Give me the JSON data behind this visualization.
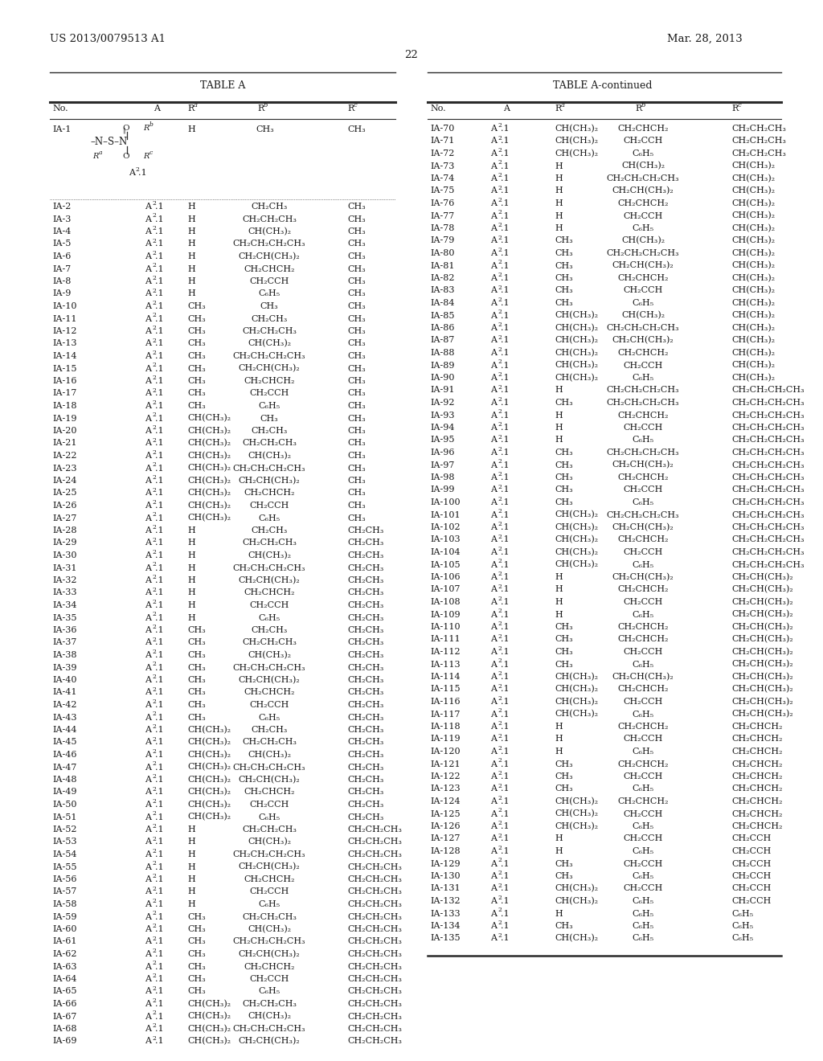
{
  "header_left": "US 2013/0079513 A1",
  "header_right": "Mar. 28, 2013",
  "page_number": "22",
  "left_table": [
    [
      "IA-1",
      "struct",
      "H",
      "CH₃",
      "CH₃"
    ],
    [
      "IA-2",
      "A².1",
      "H",
      "CH₂CH₃",
      "CH₃"
    ],
    [
      "IA-3",
      "A².1",
      "H",
      "CH₂CH₂CH₃",
      "CH₃"
    ],
    [
      "IA-4",
      "A².1",
      "H",
      "CH(CH₃)₂",
      "CH₃"
    ],
    [
      "IA-5",
      "A².1",
      "H",
      "CH₂CH₂CH₂CH₃",
      "CH₃"
    ],
    [
      "IA-6",
      "A².1",
      "H",
      "CH₂CH(CH₃)₂",
      "CH₃"
    ],
    [
      "IA-7",
      "A².1",
      "H",
      "CH₂CHCH₂",
      "CH₃"
    ],
    [
      "IA-8",
      "A².1",
      "H",
      "CH₂CCH",
      "CH₃"
    ],
    [
      "IA-9",
      "A².1",
      "H",
      "C₆H₅",
      "CH₃"
    ],
    [
      "IA-10",
      "A².1",
      "CH₃",
      "CH₃",
      "CH₃"
    ],
    [
      "IA-11",
      "A².1",
      "CH₃",
      "CH₂CH₃",
      "CH₃"
    ],
    [
      "IA-12",
      "A².1",
      "CH₃",
      "CH₂CH₂CH₃",
      "CH₃"
    ],
    [
      "IA-13",
      "A².1",
      "CH₃",
      "CH(CH₃)₂",
      "CH₃"
    ],
    [
      "IA-14",
      "A².1",
      "CH₃",
      "CH₂CH₂CH₂CH₃",
      "CH₃"
    ],
    [
      "IA-15",
      "A².1",
      "CH₃",
      "CH₂CH(CH₃)₂",
      "CH₃"
    ],
    [
      "IA-16",
      "A².1",
      "CH₃",
      "CH₂CHCH₂",
      "CH₃"
    ],
    [
      "IA-17",
      "A².1",
      "CH₃",
      "CH₂CCH",
      "CH₃"
    ],
    [
      "IA-18",
      "A².1",
      "CH₃",
      "C₆H₅",
      "CH₃"
    ],
    [
      "IA-19",
      "A².1",
      "CH(CH₃)₂",
      "CH₃",
      "CH₃"
    ],
    [
      "IA-20",
      "A².1",
      "CH(CH₃)₂",
      "CH₂CH₃",
      "CH₃"
    ],
    [
      "IA-21",
      "A².1",
      "CH(CH₃)₂",
      "CH₂CH₂CH₃",
      "CH₃"
    ],
    [
      "IA-22",
      "A².1",
      "CH(CH₃)₂",
      "CH(CH₃)₂",
      "CH₃"
    ],
    [
      "IA-23",
      "A².1",
      "CH(CH₃)₂",
      "CH₂CH₂CH₂CH₃",
      "CH₃"
    ],
    [
      "IA-24",
      "A².1",
      "CH(CH₃)₂",
      "CH₂CH(CH₃)₂",
      "CH₃"
    ],
    [
      "IA-25",
      "A².1",
      "CH(CH₃)₂",
      "CH₂CHCH₂",
      "CH₃"
    ],
    [
      "IA-26",
      "A².1",
      "CH(CH₃)₂",
      "CH₂CCH",
      "CH₃"
    ],
    [
      "IA-27",
      "A².1",
      "CH(CH₃)₂",
      "C₆H₅",
      "CH₃"
    ],
    [
      "IA-28",
      "A².1",
      "H",
      "CH₂CH₃",
      "CH₂CH₃"
    ],
    [
      "IA-29",
      "A².1",
      "H",
      "CH₂CH₂CH₃",
      "CH₂CH₃"
    ],
    [
      "IA-30",
      "A².1",
      "H",
      "CH(CH₃)₂",
      "CH₂CH₃"
    ],
    [
      "IA-31",
      "A².1",
      "H",
      "CH₂CH₂CH₂CH₃",
      "CH₂CH₃"
    ],
    [
      "IA-32",
      "A².1",
      "H",
      "CH₂CH(CH₃)₂",
      "CH₂CH₃"
    ],
    [
      "IA-33",
      "A².1",
      "H",
      "CH₂CHCH₂",
      "CH₂CH₃"
    ],
    [
      "IA-34",
      "A².1",
      "H",
      "CH₂CCH",
      "CH₂CH₃"
    ],
    [
      "IA-35",
      "A².1",
      "H",
      "C₆H₅",
      "CH₂CH₃"
    ],
    [
      "IA-36",
      "A².1",
      "CH₃",
      "CH₂CH₃",
      "CH₂CH₃"
    ],
    [
      "IA-37",
      "A².1",
      "CH₃",
      "CH₂CH₂CH₃",
      "CH₂CH₃"
    ],
    [
      "IA-38",
      "A².1",
      "CH₃",
      "CH(CH₃)₂",
      "CH₂CH₃"
    ],
    [
      "IA-39",
      "A².1",
      "CH₃",
      "CH₂CH₂CH₂CH₃",
      "CH₂CH₃"
    ],
    [
      "IA-40",
      "A².1",
      "CH₃",
      "CH₂CH(CH₃)₂",
      "CH₂CH₃"
    ],
    [
      "IA-41",
      "A².1",
      "CH₃",
      "CH₂CHCH₂",
      "CH₂CH₃"
    ],
    [
      "IA-42",
      "A².1",
      "CH₃",
      "CH₂CCH",
      "CH₂CH₃"
    ],
    [
      "IA-43",
      "A².1",
      "CH₃",
      "C₆H₅",
      "CH₂CH₃"
    ],
    [
      "IA-44",
      "A².1",
      "CH(CH₃)₂",
      "CH₂CH₃",
      "CH₂CH₃"
    ],
    [
      "IA-45",
      "A².1",
      "CH(CH₃)₂",
      "CH₂CH₂CH₃",
      "CH₂CH₃"
    ],
    [
      "IA-46",
      "A².1",
      "CH(CH₃)₂",
      "CH(CH₃)₂",
      "CH₂CH₃"
    ],
    [
      "IA-47",
      "A².1",
      "CH(CH₃)₂",
      "CH₂CH₂CH₂CH₃",
      "CH₂CH₃"
    ],
    [
      "IA-48",
      "A².1",
      "CH(CH₃)₂",
      "CH₂CH(CH₃)₂",
      "CH₂CH₃"
    ],
    [
      "IA-49",
      "A².1",
      "CH(CH₃)₂",
      "CH₂CHCH₂",
      "CH₂CH₃"
    ],
    [
      "IA-50",
      "A².1",
      "CH(CH₃)₂",
      "CH₂CCH",
      "CH₂CH₃"
    ],
    [
      "IA-51",
      "A².1",
      "CH(CH₃)₂",
      "C₆H₅",
      "CH₂CH₃"
    ],
    [
      "IA-52",
      "A².1",
      "H",
      "CH₂CH₂CH₃",
      "CH₂CH₂CH₃"
    ],
    [
      "IA-53",
      "A².1",
      "H",
      "CH(CH₃)₂",
      "CH₂CH₂CH₃"
    ],
    [
      "IA-54",
      "A².1",
      "H",
      "CH₂CH₂CH₂CH₃",
      "CH₂CH₂CH₃"
    ],
    [
      "IA-55",
      "A².1",
      "H",
      "CH₂CH(CH₃)₂",
      "CH₂CH₂CH₃"
    ],
    [
      "IA-56",
      "A².1",
      "H",
      "CH₂CHCH₂",
      "CH₂CH₂CH₃"
    ],
    [
      "IA-57",
      "A².1",
      "H",
      "CH₂CCH",
      "CH₂CH₂CH₃"
    ],
    [
      "IA-58",
      "A².1",
      "H",
      "C₆H₅",
      "CH₂CH₂CH₃"
    ],
    [
      "IA-59",
      "A².1",
      "CH₃",
      "CH₂CH₂CH₃",
      "CH₂CH₂CH₃"
    ],
    [
      "IA-60",
      "A².1",
      "CH₃",
      "CH(CH₃)₂",
      "CH₂CH₂CH₃"
    ],
    [
      "IA-61",
      "A².1",
      "CH₃",
      "CH₂CH₂CH₂CH₃",
      "CH₂CH₂CH₃"
    ],
    [
      "IA-62",
      "A².1",
      "CH₃",
      "CH₂CH(CH₃)₂",
      "CH₂CH₂CH₃"
    ],
    [
      "IA-63",
      "A².1",
      "CH₃",
      "CH₂CHCH₂",
      "CH₂CH₂CH₃"
    ],
    [
      "IA-64",
      "A².1",
      "CH₃",
      "CH₂CCH",
      "CH₂CH₂CH₃"
    ],
    [
      "IA-65",
      "A².1",
      "CH₃",
      "C₆H₅",
      "CH₂CH₂CH₃"
    ],
    [
      "IA-66",
      "A².1",
      "CH(CH₃)₂",
      "CH₂CH₂CH₃",
      "CH₂CH₂CH₃"
    ],
    [
      "IA-67",
      "A².1",
      "CH(CH₃)₂",
      "CH(CH₃)₂",
      "CH₂CH₂CH₃"
    ],
    [
      "IA-68",
      "A².1",
      "CH(CH₃)₂",
      "CH₂CH₂CH₂CH₃",
      "CH₂CH₂CH₃"
    ],
    [
      "IA-69",
      "A².1",
      "CH(CH₃)₂",
      "CH₂CH(CH₃)₂",
      "CH₂CH₂CH₃"
    ]
  ],
  "right_table": [
    [
      "IA-70",
      "A².1",
      "CH(CH₃)₂",
      "CH₂CHCH₂",
      "CH₂CH₂CH₃"
    ],
    [
      "IA-71",
      "A².1",
      "CH(CH₃)₂",
      "CH₂CCH",
      "CH₂CH₂CH₃"
    ],
    [
      "IA-72",
      "A².1",
      "CH(CH₃)₂",
      "C₆H₅",
      "CH₂CH₂CH₃"
    ],
    [
      "IA-73",
      "A².1",
      "H",
      "CH(CH₃)₂",
      "CH(CH₃)₂"
    ],
    [
      "IA-74",
      "A².1",
      "H",
      "CH₂CH₂CH₂CH₃",
      "CH(CH₃)₂"
    ],
    [
      "IA-75",
      "A².1",
      "H",
      "CH₂CH(CH₃)₂",
      "CH(CH₃)₂"
    ],
    [
      "IA-76",
      "A².1",
      "H",
      "CH₂CHCH₂",
      "CH(CH₃)₂"
    ],
    [
      "IA-77",
      "A².1",
      "H",
      "CH₂CCH",
      "CH(CH₃)₂"
    ],
    [
      "IA-78",
      "A².1",
      "H",
      "C₆H₅",
      "CH(CH₃)₂"
    ],
    [
      "IA-79",
      "A².1",
      "CH₃",
      "CH(CH₃)₂",
      "CH(CH₃)₂"
    ],
    [
      "IA-80",
      "A².1",
      "CH₃",
      "CH₂CH₂CH₂CH₃",
      "CH(CH₃)₂"
    ],
    [
      "IA-81",
      "A².1",
      "CH₃",
      "CH₂CH(CH₃)₂",
      "CH(CH₃)₂"
    ],
    [
      "IA-82",
      "A².1",
      "CH₃",
      "CH₂CHCH₂",
      "CH(CH₃)₂"
    ],
    [
      "IA-83",
      "A².1",
      "CH₃",
      "CH₂CCH",
      "CH(CH₃)₂"
    ],
    [
      "IA-84",
      "A².1",
      "CH₃",
      "C₆H₅",
      "CH(CH₃)₂"
    ],
    [
      "IA-85",
      "A².1",
      "CH(CH₃)₂",
      "CH(CH₃)₂",
      "CH(CH₃)₂"
    ],
    [
      "IA-86",
      "A².1",
      "CH(CH₃)₂",
      "CH₂CH₂CH₂CH₃",
      "CH(CH₃)₂"
    ],
    [
      "IA-87",
      "A².1",
      "CH(CH₃)₂",
      "CH₂CH(CH₃)₂",
      "CH(CH₃)₂"
    ],
    [
      "IA-88",
      "A².1",
      "CH(CH₃)₂",
      "CH₂CHCH₂",
      "CH(CH₃)₂"
    ],
    [
      "IA-89",
      "A².1",
      "CH(CH₃)₂",
      "CH₂CCH",
      "CH(CH₃)₂"
    ],
    [
      "IA-90",
      "A².1",
      "CH(CH₃)₂",
      "C₆H₅",
      "CH(CH₃)₂"
    ],
    [
      "IA-91",
      "A².1",
      "H",
      "CH₂CH₂CH₂CH₃",
      "CH₂CH₂CH₂CH₃"
    ],
    [
      "IA-92",
      "A².1",
      "CH₃",
      "CH₂CH₂CH₂CH₃",
      "CH₂CH₂CH₂CH₃"
    ],
    [
      "IA-93",
      "A².1",
      "H",
      "CH₂CHCH₂",
      "CH₂CH₂CH₂CH₃"
    ],
    [
      "IA-94",
      "A².1",
      "H",
      "CH₂CCH",
      "CH₂CH₂CH₂CH₃"
    ],
    [
      "IA-95",
      "A².1",
      "H",
      "C₆H₅",
      "CH₂CH₂CH₂CH₃"
    ],
    [
      "IA-96",
      "A².1",
      "CH₃",
      "CH₂CH₂CH₂CH₃",
      "CH₂CH₂CH₂CH₃"
    ],
    [
      "IA-97",
      "A².1",
      "CH₃",
      "CH₂CH(CH₃)₂",
      "CH₂CH₂CH₂CH₃"
    ],
    [
      "IA-98",
      "A².1",
      "CH₃",
      "CH₂CHCH₂",
      "CH₂CH₂CH₂CH₃"
    ],
    [
      "IA-99",
      "A².1",
      "CH₃",
      "CH₂CCH",
      "CH₂CH₂CH₂CH₃"
    ],
    [
      "IA-100",
      "A².1",
      "CH₃",
      "C₆H₅",
      "CH₂CH₂CH₂CH₃"
    ],
    [
      "IA-101",
      "A².1",
      "CH(CH₃)₂",
      "CH₂CH₂CH₂CH₃",
      "CH₂CH₂CH₂CH₃"
    ],
    [
      "IA-102",
      "A².1",
      "CH(CH₃)₂",
      "CH₂CH(CH₃)₂",
      "CH₂CH₂CH₂CH₃"
    ],
    [
      "IA-103",
      "A².1",
      "CH(CH₃)₂",
      "CH₂CHCH₂",
      "CH₂CH₂CH₂CH₃"
    ],
    [
      "IA-104",
      "A².1",
      "CH(CH₃)₂",
      "CH₂CCH",
      "CH₂CH₂CH₂CH₃"
    ],
    [
      "IA-105",
      "A².1",
      "CH(CH₃)₂",
      "C₆H₅",
      "CH₂CH₂CH₂CH₃"
    ],
    [
      "IA-106",
      "A².1",
      "H",
      "CH₂CH(CH₃)₂",
      "CH₂CH(CH₃)₂"
    ],
    [
      "IA-107",
      "A².1",
      "H",
      "CH₂CHCH₂",
      "CH₂CH(CH₃)₂"
    ],
    [
      "IA-108",
      "A².1",
      "H",
      "CH₂CCH",
      "CH₂CH(CH₃)₂"
    ],
    [
      "IA-109",
      "A².1",
      "H",
      "C₆H₅",
      "CH₂CH(CH₃)₂"
    ],
    [
      "IA-110",
      "A².1",
      "CH₃",
      "CH₂CHCH₂",
      "CH₂CH(CH₃)₂"
    ],
    [
      "IA-111",
      "A².1",
      "CH₃",
      "CH₂CHCH₂",
      "CH₂CH(CH₃)₂"
    ],
    [
      "IA-112",
      "A².1",
      "CH₃",
      "CH₂CCH",
      "CH₂CH(CH₃)₂"
    ],
    [
      "IA-113",
      "A².1",
      "CH₃",
      "C₆H₅",
      "CH₂CH(CH₃)₂"
    ],
    [
      "IA-114",
      "A².1",
      "CH(CH₃)₂",
      "CH₂CH(CH₃)₂",
      "CH₂CH(CH₃)₂"
    ],
    [
      "IA-115",
      "A².1",
      "CH(CH₃)₂",
      "CH₂CHCH₂",
      "CH₂CH(CH₃)₂"
    ],
    [
      "IA-116",
      "A².1",
      "CH(CH₃)₂",
      "CH₂CCH",
      "CH₂CH(CH₃)₂"
    ],
    [
      "IA-117",
      "A².1",
      "CH(CH₃)₂",
      "C₆H₅",
      "CH₂CH(CH₃)₂"
    ],
    [
      "IA-118",
      "A².1",
      "H",
      "CH₂CHCH₂",
      "CH₂CHCH₂"
    ],
    [
      "IA-119",
      "A².1",
      "H",
      "CH₂CCH",
      "CH₂CHCH₂"
    ],
    [
      "IA-120",
      "A².1",
      "H",
      "C₆H₅",
      "CH₂CHCH₂"
    ],
    [
      "IA-121",
      "A².1",
      "CH₃",
      "CH₂CHCH₂",
      "CH₂CHCH₂"
    ],
    [
      "IA-122",
      "A².1",
      "CH₃",
      "CH₂CCH",
      "CH₂CHCH₂"
    ],
    [
      "IA-123",
      "A².1",
      "CH₃",
      "C₆H₅",
      "CH₂CHCH₂"
    ],
    [
      "IA-124",
      "A².1",
      "CH(CH₃)₂",
      "CH₂CHCH₂",
      "CH₂CHCH₂"
    ],
    [
      "IA-125",
      "A².1",
      "CH(CH₃)₂",
      "CH₂CCH",
      "CH₂CHCH₂"
    ],
    [
      "IA-126",
      "A².1",
      "CH(CH₃)₂",
      "C₆H₅",
      "CH₂CHCH₂"
    ],
    [
      "IA-127",
      "A².1",
      "H",
      "CH₂CCH",
      "CH₂CCH"
    ],
    [
      "IA-128",
      "A².1",
      "H",
      "C₆H₅",
      "CH₂CCH"
    ],
    [
      "IA-129",
      "A².1",
      "CH₃",
      "CH₂CCH",
      "CH₂CCH"
    ],
    [
      "IA-130",
      "A².1",
      "CH₃",
      "C₆H₅",
      "CH₂CCH"
    ],
    [
      "IA-131",
      "A².1",
      "CH(CH₃)₂",
      "CH₂CCH",
      "CH₂CCH"
    ],
    [
      "IA-132",
      "A².1",
      "CH(CH₃)₂",
      "C₆H₅",
      "CH₂CCH"
    ],
    [
      "IA-133",
      "A².1",
      "H",
      "C₆H₅",
      "C₆H₅"
    ],
    [
      "IA-134",
      "A².1",
      "CH₃",
      "C₆H₅",
      "C₆H₅"
    ],
    [
      "IA-135",
      "A².1",
      "CH(CH₃)₂",
      "C₆H₅",
      "C₆H₅"
    ]
  ]
}
